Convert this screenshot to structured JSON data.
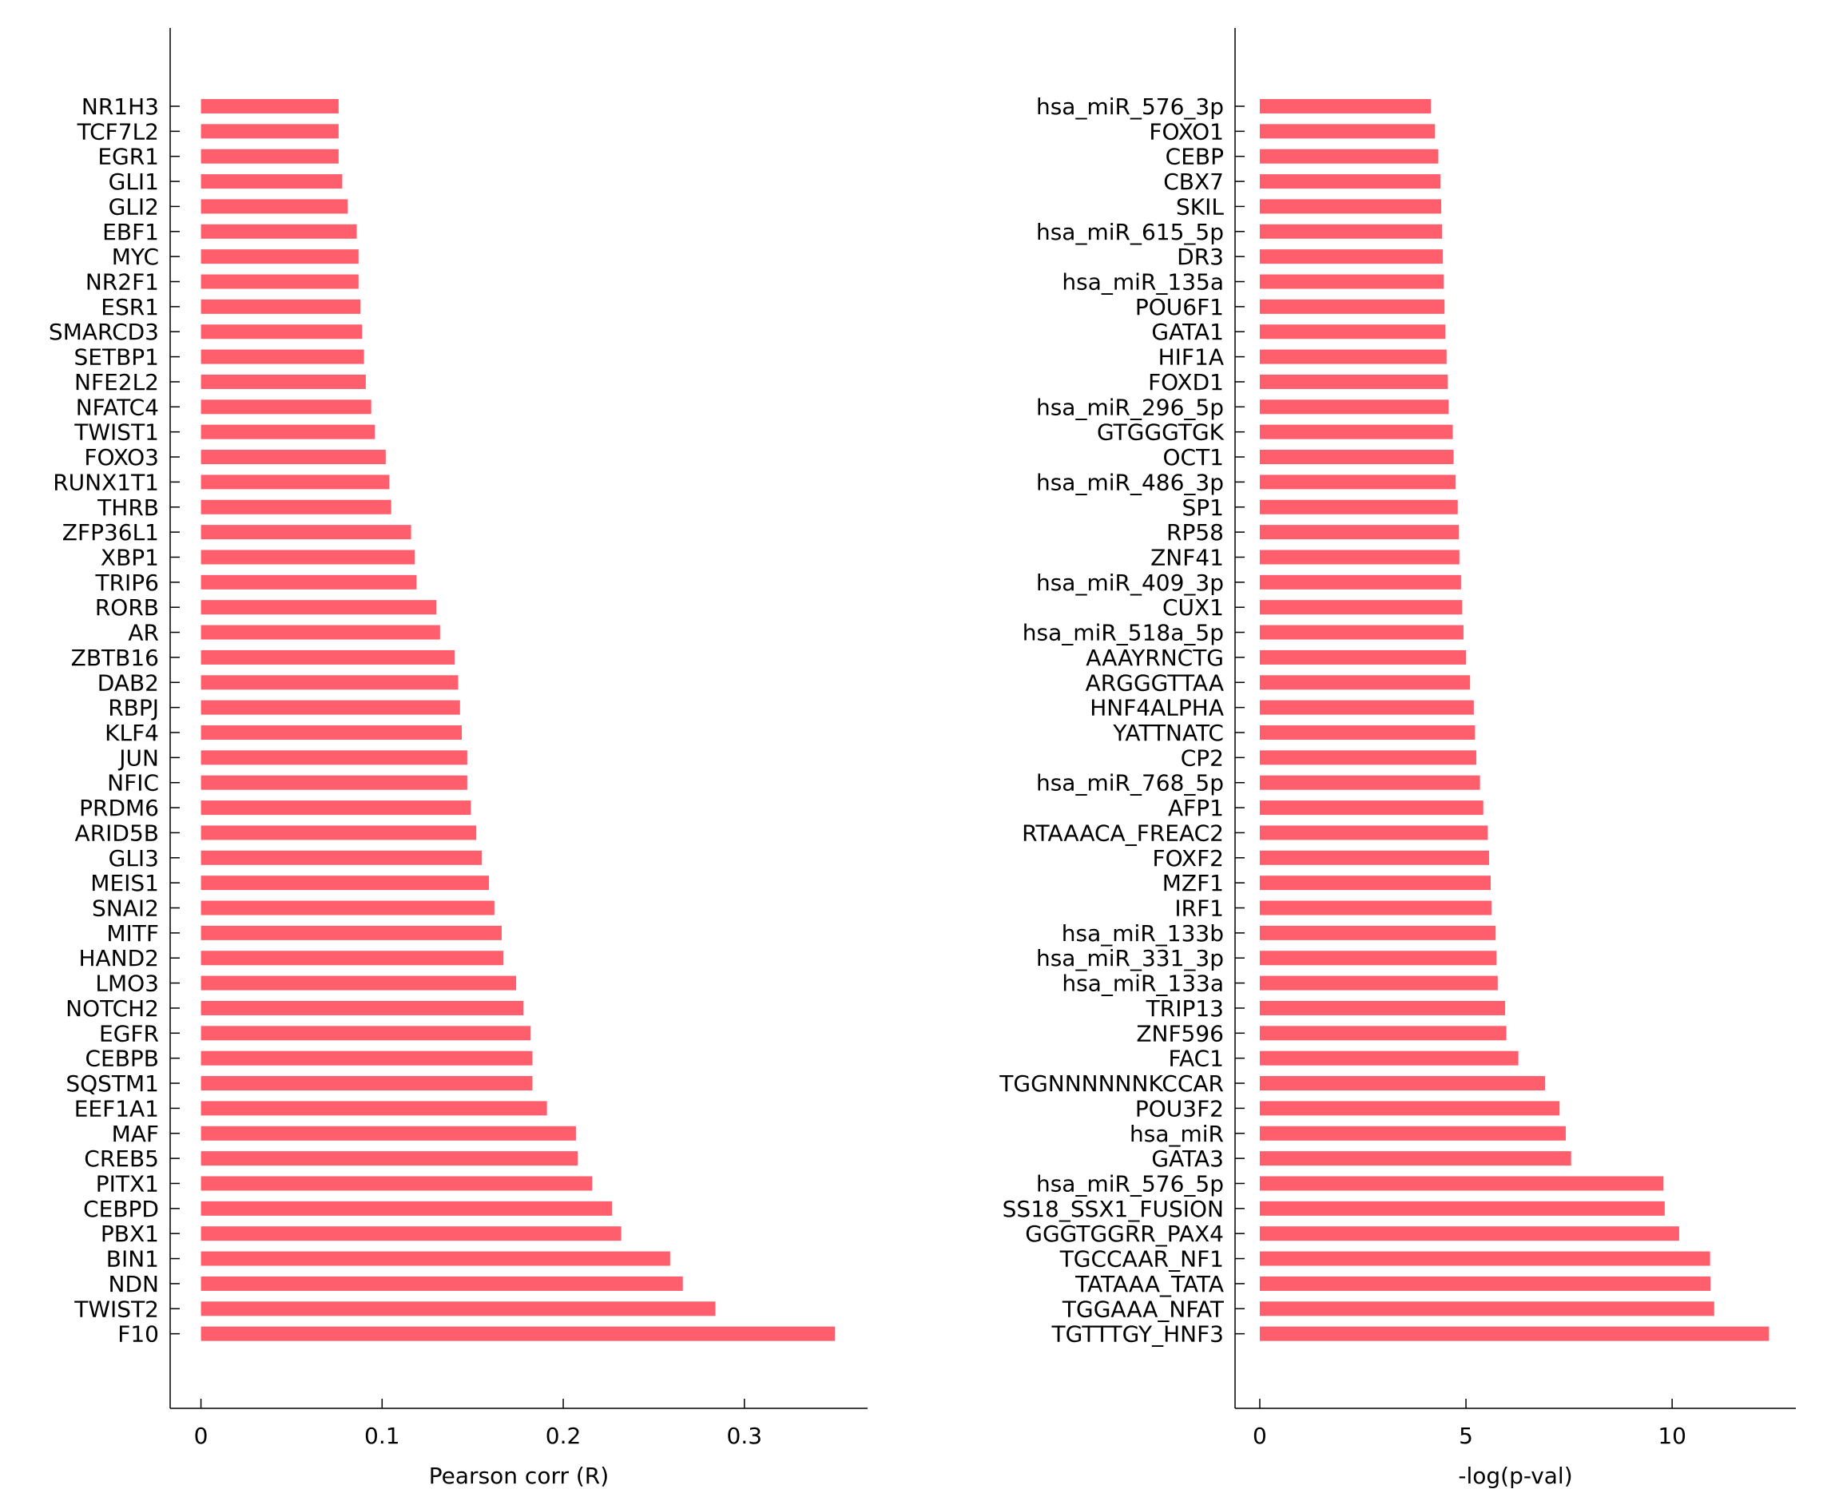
{
  "bar_color": "#ff5f6d",
  "chart_data": [
    {
      "type": "bar",
      "orientation": "horizontal",
      "xlabel": "Pearson corr (R)",
      "xlim": [
        -0.017,
        0.368
      ],
      "xticks": [
        0,
        0.1,
        0.2,
        0.3
      ],
      "xtick_labels": [
        "0",
        "0.1",
        "0.2",
        "0.3"
      ],
      "categories": [
        "NR1H3",
        "TCF7L2",
        "EGR1",
        "GLI1",
        "GLI2",
        "EBF1",
        "MYC",
        "NR2F1",
        "ESR1",
        "SMARCD3",
        "SETBP1",
        "NFE2L2",
        "NFATC4",
        "TWIST1",
        "FOXO3",
        "RUNX1T1",
        "THRB",
        "ZFP36L1",
        "XBP1",
        "TRIP6",
        "RORB",
        "AR",
        "ZBTB16",
        "DAB2",
        "RBPJ",
        "KLF4",
        "JUN",
        "NFIC",
        "PRDM6",
        "ARID5B",
        "GLI3",
        "MEIS1",
        "SNAI2",
        "MITF",
        "HAND2",
        "LMO3",
        "NOTCH2",
        "EGFR",
        "CEBPB",
        "SQSTM1",
        "EEF1A1",
        "MAF",
        "CREB5",
        "PITX1",
        "CEBPD",
        "PBX1",
        "BIN1",
        "NDN",
        "TWIST2",
        "F10"
      ],
      "values": [
        0.076,
        0.076,
        0.076,
        0.078,
        0.081,
        0.086,
        0.087,
        0.087,
        0.088,
        0.089,
        0.09,
        0.091,
        0.094,
        0.096,
        0.102,
        0.104,
        0.105,
        0.116,
        0.118,
        0.119,
        0.13,
        0.132,
        0.14,
        0.142,
        0.143,
        0.144,
        0.147,
        0.147,
        0.149,
        0.152,
        0.155,
        0.159,
        0.162,
        0.166,
        0.167,
        0.174,
        0.178,
        0.182,
        0.183,
        0.183,
        0.191,
        0.207,
        0.208,
        0.216,
        0.227,
        0.232,
        0.259,
        0.266,
        0.284,
        0.35
      ]
    },
    {
      "type": "bar",
      "orientation": "horizontal",
      "xlabel": "-log(p-val)",
      "xlim": [
        -0.6,
        13.0
      ],
      "xticks": [
        0,
        5,
        10
      ],
      "xtick_labels": [
        "0",
        "5",
        "10"
      ],
      "categories": [
        "hsa_miR_576_3p",
        "FOXO1",
        "CEBP",
        "CBX7",
        "SKIL",
        "hsa_miR_615_5p",
        "DR3",
        "hsa_miR_135a",
        "POU6F1",
        "GATA1",
        "HIF1A",
        "FOXD1",
        "hsa_miR_296_5p",
        "GTGGGTGK",
        "OCT1",
        "hsa_miR_486_3p",
        "SP1",
        "RP58",
        "ZNF41",
        "hsa_miR_409_3p",
        "CUX1",
        "hsa_miR_518a_5p",
        "AAAYRNCTG",
        "ARGGGTTAA",
        "HNF4ALPHA",
        "YATTNATC",
        "CP2",
        "hsa_miR_768_5p",
        "AFP1",
        "RTAAACA_FREAC2",
        "FOXF2",
        "MZF1",
        "IRF1",
        "hsa_miR_133b",
        "hsa_miR_331_3p",
        "hsa_miR_133a",
        "TRIP13",
        "ZNF596",
        "FAC1",
        "TGGNNNNNNKCCAR",
        "POU3F2",
        "hsa_miR",
        "GATA3",
        "hsa_miR_576_5p",
        "SS18_SSX1_FUSION",
        "GGGTGGRR_PAX4",
        "TGCCAAR_NF1",
        "TATAAA_TATA",
        "TGGAAA_NFAT",
        "TGTTTGY_HNF3"
      ],
      "values": [
        4.15,
        4.25,
        4.33,
        4.38,
        4.4,
        4.42,
        4.44,
        4.46,
        4.48,
        4.5,
        4.53,
        4.56,
        4.58,
        4.68,
        4.7,
        4.75,
        4.8,
        4.83,
        4.84,
        4.88,
        4.91,
        4.94,
        5.0,
        5.1,
        5.19,
        5.22,
        5.25,
        5.34,
        5.42,
        5.53,
        5.56,
        5.6,
        5.62,
        5.72,
        5.74,
        5.77,
        5.95,
        5.98,
        6.27,
        6.92,
        7.27,
        7.42,
        7.55,
        9.79,
        9.82,
        10.17,
        10.92,
        10.93,
        11.02,
        12.35
      ]
    }
  ]
}
